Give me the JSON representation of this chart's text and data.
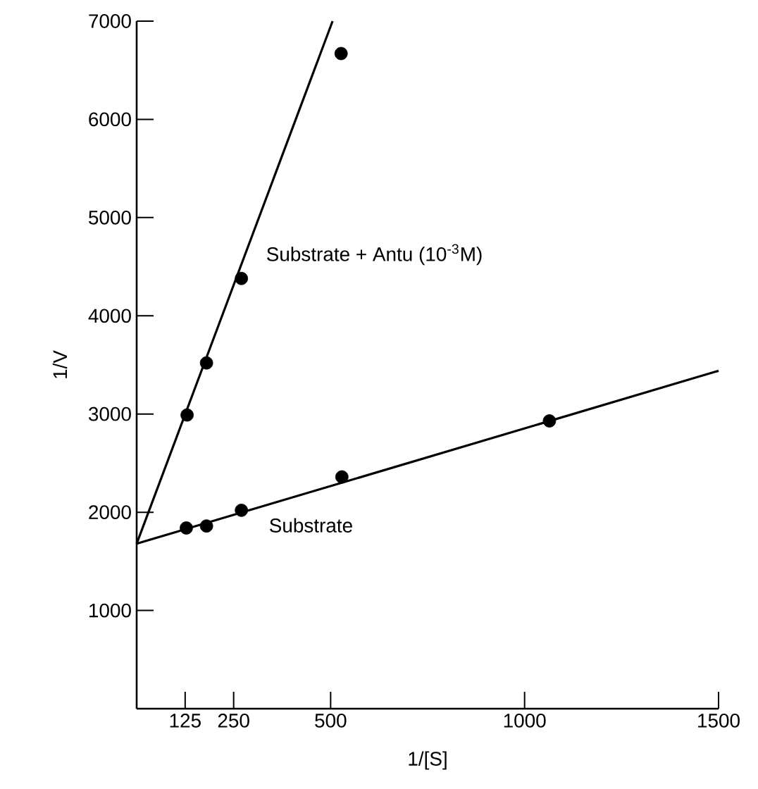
{
  "chart_data": {
    "type": "scatter",
    "xlabel": "1/[S]",
    "ylabel": "1/V",
    "xlim": [
      0,
      1500
    ],
    "ylim": [
      0,
      7000
    ],
    "xticks": [
      125,
      250,
      500,
      1000,
      1500
    ],
    "yticks": [
      1000,
      2000,
      3000,
      4000,
      5000,
      6000,
      7000
    ],
    "line_style": "solid",
    "grid": false,
    "legend": false,
    "series": [
      {
        "name": "Substrate + Antu (10$^{-3}$M)",
        "marker": "circle",
        "color": "#000000",
        "x": [
          130,
          180,
          270,
          527
        ],
        "values": [
          2990,
          3520,
          4380,
          6670
        ]
      },
      {
        "name": "Substrate",
        "marker": "circle",
        "color": "#000000",
        "x": [
          128,
          180,
          270,
          529,
          1064
        ],
        "values": [
          1840,
          1860,
          2020,
          2360,
          2930
        ]
      },
      {
        "type": "line",
        "marker": "none",
        "color": "#000000",
        "x": [
          0,
          505
        ],
        "values": [
          1680,
          7000
        ]
      },
      {
        "type": "line",
        "marker": "none",
        "color": "#000000",
        "x": [
          0,
          1500
        ],
        "values": [
          1680,
          3440
        ]
      }
    ]
  }
}
